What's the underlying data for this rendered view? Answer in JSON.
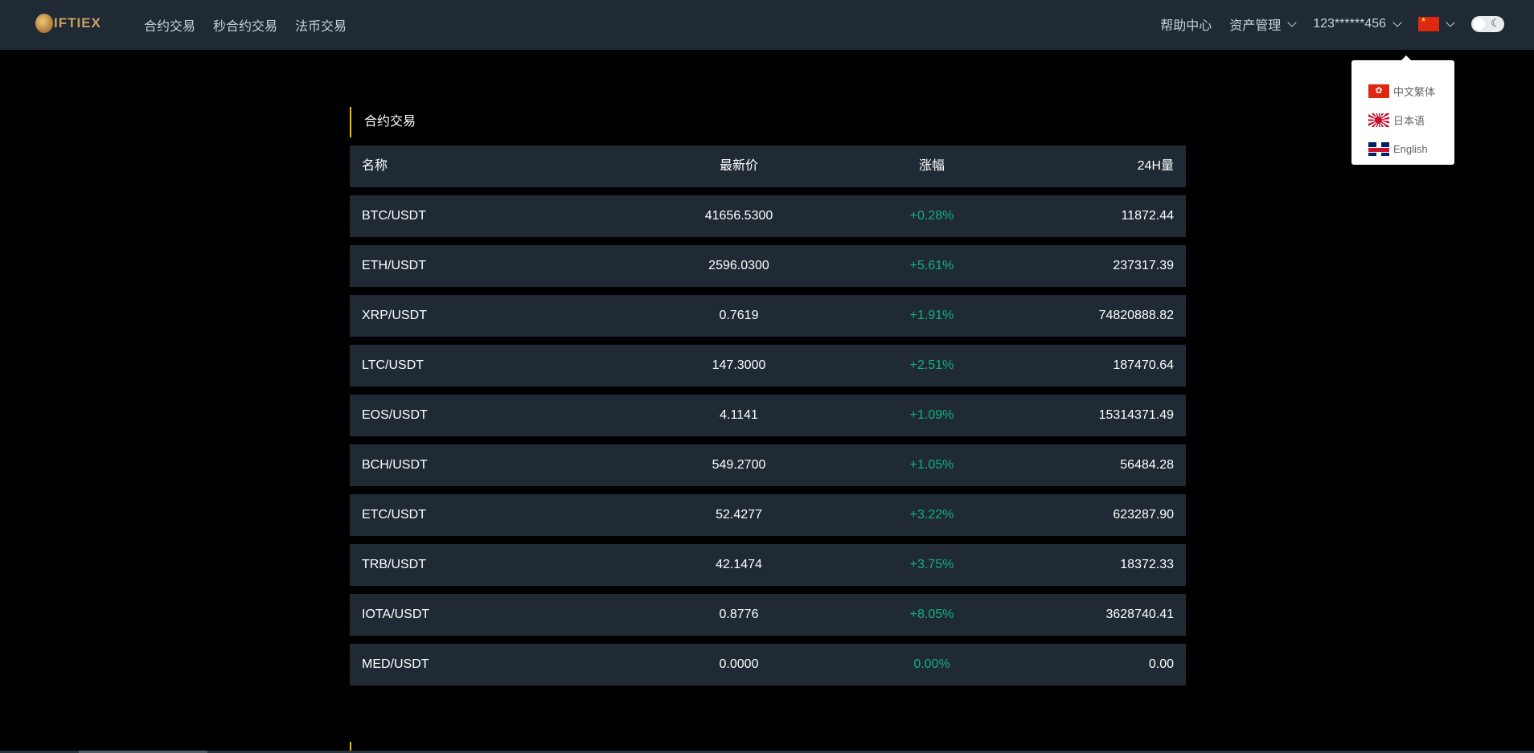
{
  "header": {
    "logo": "IFTIEX",
    "nav": [
      "合约交易",
      "秒合约交易",
      "法币交易"
    ],
    "help": "帮助中心",
    "assets": "资产管理",
    "user": "123******456",
    "current_language_flag": "cn-flag-icon",
    "theme_toggle": "dark-mode-toggle"
  },
  "language_menu": [
    {
      "flag": "hk-flag-icon",
      "label": "中文繁体"
    },
    {
      "flag": "jp-flag-icon",
      "label": "日本语"
    },
    {
      "flag": "uk-flag-icon",
      "label": "English"
    }
  ],
  "section": {
    "title": "合约交易"
  },
  "table": {
    "columns": [
      "名称",
      "最新价",
      "涨幅",
      "24H量"
    ],
    "rows": [
      [
        "BTC/USDT",
        "41656.5300",
        "+0.28%",
        "11872.44"
      ],
      [
        "ETH/USDT",
        "2596.0300",
        "+5.61%",
        "237317.39"
      ],
      [
        "XRP/USDT",
        "0.7619",
        "+1.91%",
        "74820888.82"
      ],
      [
        "LTC/USDT",
        "147.3000",
        "+2.51%",
        "187470.64"
      ],
      [
        "EOS/USDT",
        "4.1141",
        "+1.09%",
        "15314371.49"
      ],
      [
        "BCH/USDT",
        "549.2700",
        "+1.05%",
        "56484.28"
      ],
      [
        "ETC/USDT",
        "52.4277",
        "+3.22%",
        "623287.90"
      ],
      [
        "TRB/USDT",
        "42.1474",
        "+3.75%",
        "18372.33"
      ],
      [
        "IOTA/USDT",
        "0.8776",
        "+8.05%",
        "3628740.41"
      ],
      [
        "MED/USDT",
        "0.0000",
        "0.00%",
        "0.00"
      ]
    ]
  },
  "colors": {
    "header_bg": "#1f2a35",
    "accent": "#f0b90b",
    "positive": "#13b17f"
  }
}
